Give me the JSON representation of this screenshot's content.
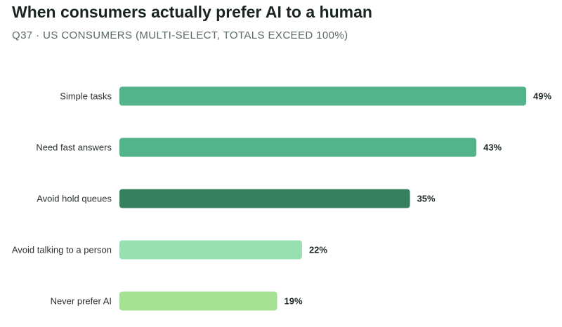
{
  "chart_data": {
    "type": "bar",
    "orientation": "horizontal",
    "title": "When consumers actually prefer AI to a human",
    "subtitle": "Q37 · US CONSUMERS (MULTI-SELECT, TOTALS EXCEED 100%)",
    "categories": [
      "Simple tasks",
      "Need fast answers",
      "Avoid hold queues",
      "Avoid talking to a person",
      "Never prefer AI"
    ],
    "values": [
      49,
      43,
      35,
      22,
      19
    ],
    "value_labels": [
      "49%",
      "43%",
      "35%",
      "22%",
      "19%"
    ],
    "unit": "%",
    "colors": [
      "#53b48c",
      "#53b48c",
      "#368060",
      "#99dfb2",
      "#a6e294"
    ],
    "xlim": [
      0,
      49
    ],
    "grid": false,
    "legend": "none"
  }
}
